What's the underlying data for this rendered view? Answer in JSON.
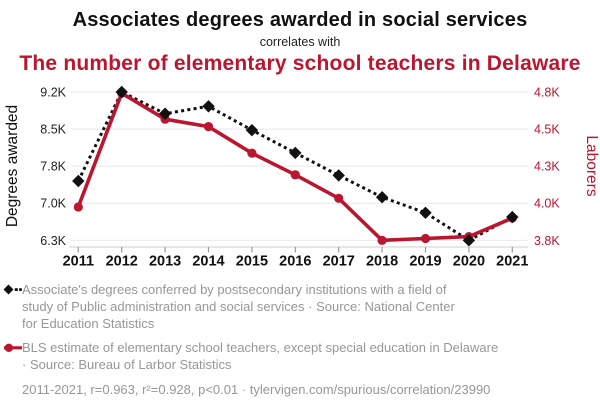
{
  "header": {
    "title": "Associates degrees awarded in social services",
    "connector": "correlates with",
    "subtitle": "The number of elementary school teachers in Delaware"
  },
  "colors": {
    "accent_red": "#bb1630",
    "series_black": "#111111",
    "legend_gray": "#979797",
    "gridline": "#e9e9e9",
    "axis_line": "#cccccc",
    "tick_mark": "#999999"
  },
  "chart_data": {
    "type": "line",
    "x": [
      2011,
      2012,
      2013,
      2014,
      2015,
      2016,
      2017,
      2018,
      2019,
      2020,
      2021
    ],
    "series": [
      {
        "name": "Associate's degrees conferred (Public administration and social services)",
        "axis": "left",
        "style": "dotted-diamond",
        "color": "#111111",
        "values": [
          7480,
          9200,
          8790,
          8930,
          8480,
          8050,
          7600,
          7130,
          6820,
          6300,
          6740
        ]
      },
      {
        "name": "Elementary school teachers in Delaware",
        "axis": "right",
        "style": "solid-circle",
        "color": "#bb1630",
        "values": [
          3980,
          4790,
          4580,
          4520,
          4370,
          4230,
          4040,
          3800,
          3810,
          3820,
          3920
        ]
      }
    ],
    "left_axis": {
      "label": "Degrees awarded",
      "ticks": [
        "9.2K",
        "8.5K",
        "7.8K",
        "7.0K",
        "6.3K"
      ],
      "tick_values": [
        9200,
        8500,
        7800,
        7000,
        6300
      ]
    },
    "right_axis": {
      "label": "Laborers",
      "ticks": [
        "4.8K",
        "4.5K",
        "4.3K",
        "4.0K",
        "3.8K"
      ],
      "tick_values": [
        4800,
        4500,
        4300,
        4000,
        3800
      ]
    },
    "grid": true,
    "legend_position": "bottom"
  },
  "legend": {
    "items": [
      {
        "marker": "black-diamond-dotted",
        "lines": [
          "Associate's degrees conferred by postsecondary institutions with a field of",
          "study of Public administration and social services · Source: National Center",
          "for Education Statistics"
        ]
      },
      {
        "marker": "red-circle-line",
        "lines": [
          "BLS estimate of elementary school teachers, except special education in Delaware",
          "· Source: Bureau of Larbor Statistics"
        ]
      }
    ],
    "footer": "2011-2021, r=0.963, r²=0.928, p<0.01 · tylervigen.com/spurious/correlation/23990"
  }
}
